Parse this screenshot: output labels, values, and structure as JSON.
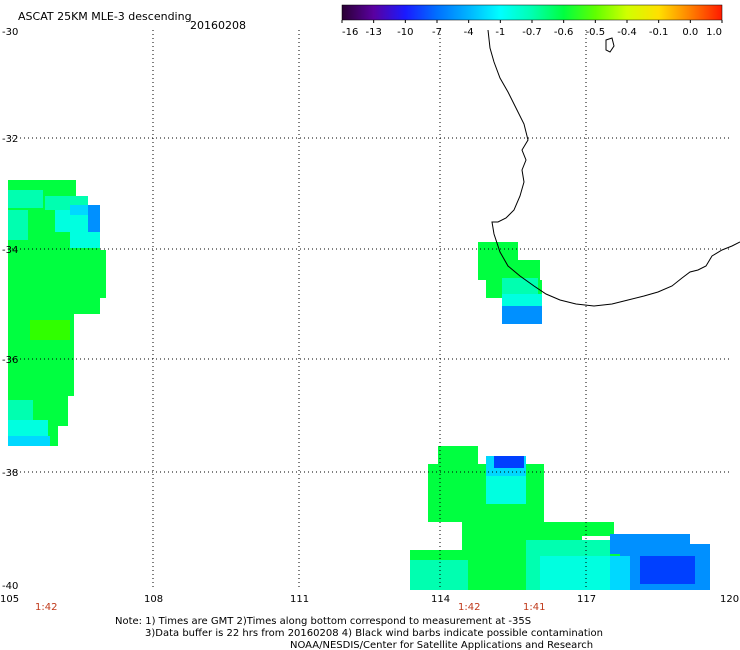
{
  "header": {
    "title": "ASCAT 25KM MLE-3 descending",
    "date": "20160208"
  },
  "colorbar": {
    "labels": [
      "-16",
      "-13",
      "-10",
      "-7",
      "-4",
      "-1",
      "-0.7",
      "-0.6",
      "-0.5",
      "-0.4",
      "-0.1",
      "0.0",
      "1.0"
    ],
    "colors": [
      "#2a0033",
      "#5a00a0",
      "#1a1aff",
      "#0070ff",
      "#00b4ff",
      "#00ffff",
      "#00ffb0",
      "#00ff40",
      "#60ff00",
      "#d0ff00",
      "#ffe000",
      "#ff8000",
      "#ff1a00"
    ]
  },
  "axes": {
    "lon_ticks": [
      "105",
      "108",
      "111",
      "114",
      "117",
      "120"
    ],
    "lat_ticks": [
      "-30",
      "-32",
      "-34",
      "-36",
      "-38",
      "-40"
    ],
    "lon_range": [
      105,
      120
    ],
    "lat_range": [
      -30,
      -40
    ]
  },
  "pass_times": [
    "1:42",
    "1:42",
    "1:41"
  ],
  "notes": {
    "line1": "Note: 1) Times are GMT 2)Times along bottom correspond to measurement at -35S",
    "line2": "3)Data buffer is 22 hrs from 20160208 4) Black wind barbs indicate possible contamination",
    "line3": "NOAA/NESDIS/Center for Satellite Applications and Research"
  },
  "colors": {
    "green": "#00ff40",
    "bright_green": "#30ff00",
    "aqua_green": "#00ff90",
    "cyan": "#00ffe0",
    "light_blue": "#00d8ff",
    "blue": "#0090ff",
    "deep_blue": "#0040ff"
  }
}
